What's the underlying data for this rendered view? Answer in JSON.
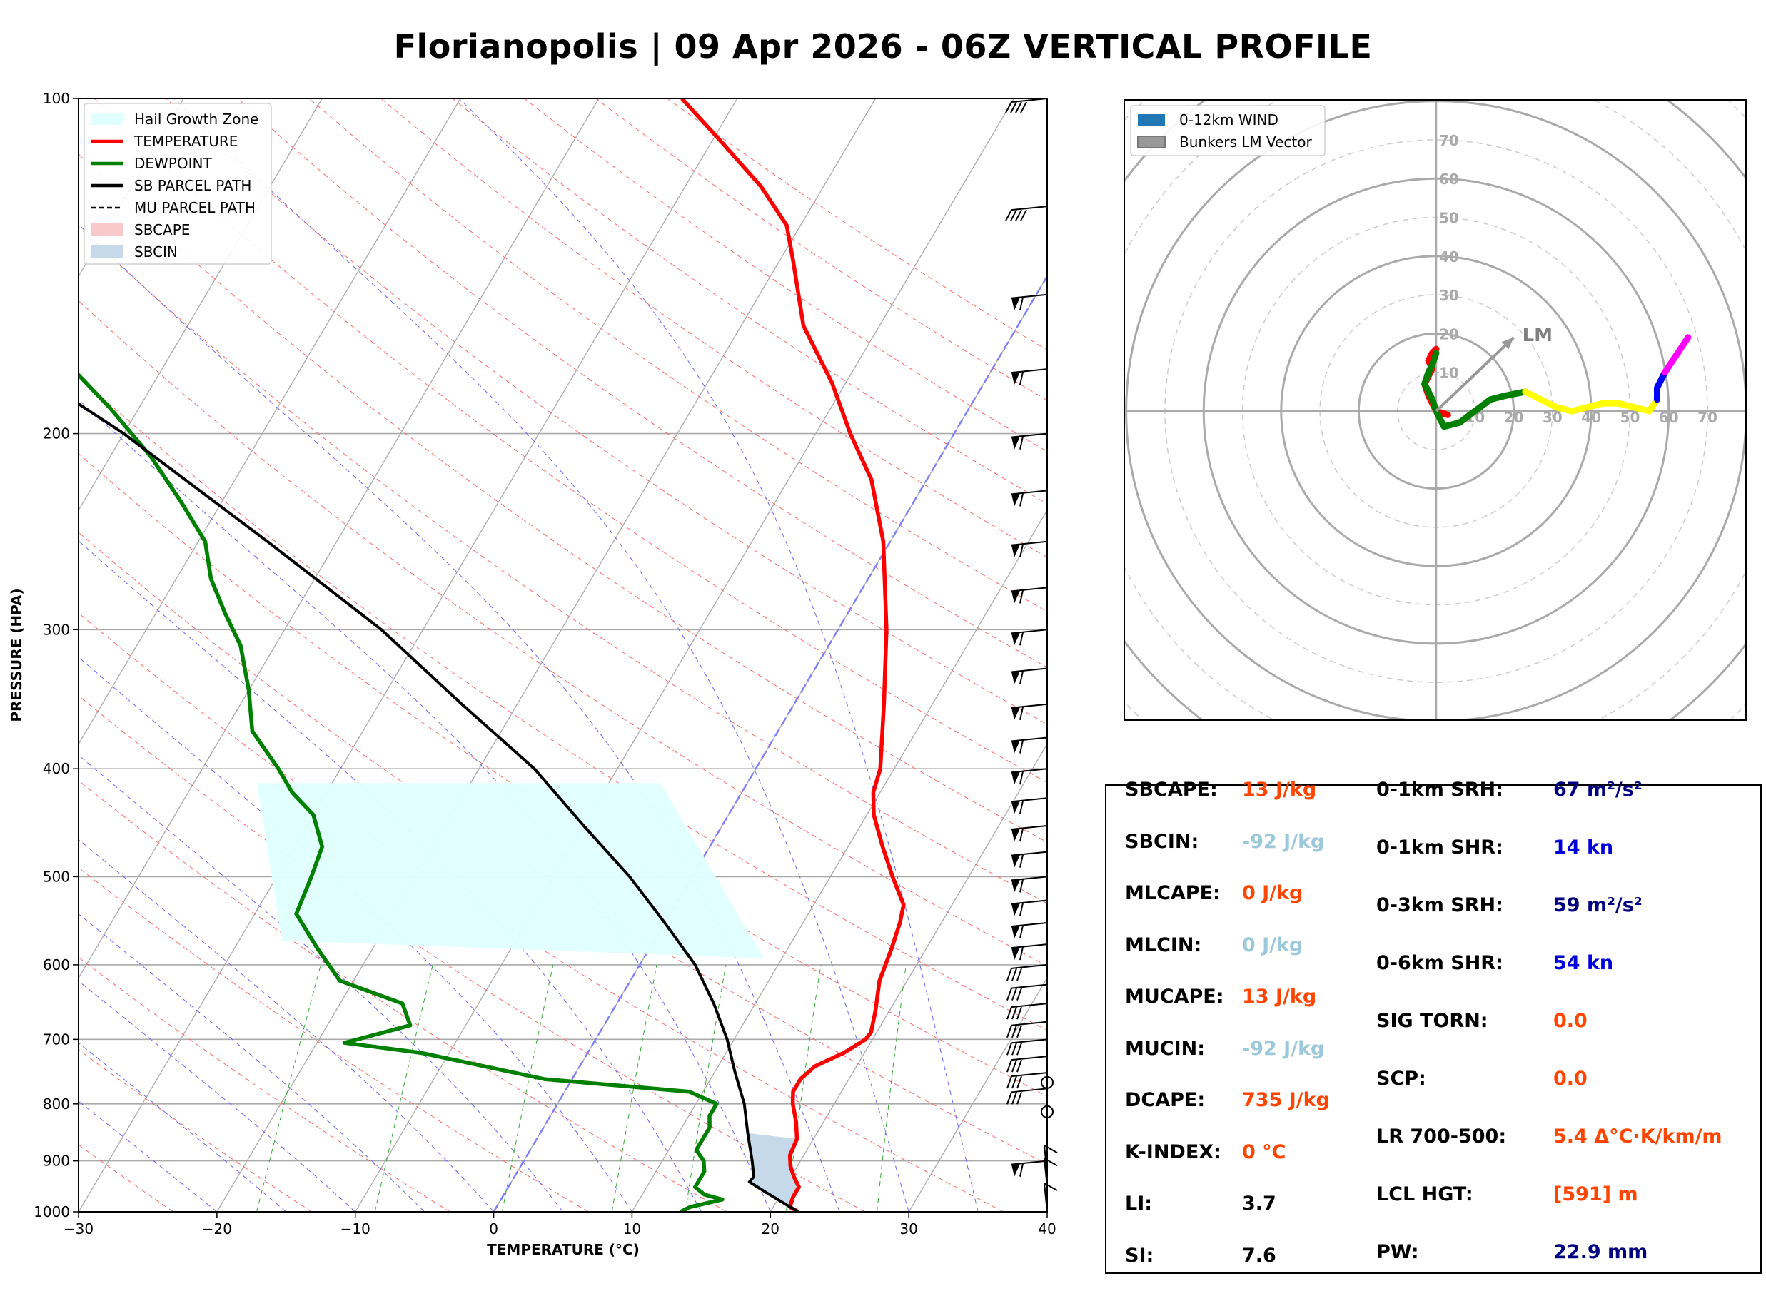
{
  "title": "Florianopolis | 09 Apr 2026 - 06Z VERTICAL PROFILE",
  "colors": {
    "temperature": "#ff0000",
    "dewpoint": "#008000",
    "parcel": "#000000",
    "hail_zone": "#e0ffff",
    "sbcin": "#c6d9ea",
    "orange_red": "#ff4500",
    "light_blue": "#9cc8dc",
    "navy": "#000080",
    "blue": "#0000dd"
  },
  "chart_data": [
    {
      "type": "line",
      "subtype": "skew-T log-P",
      "xlabel": "TEMPERATURE (°C)",
      "ylabel": "PRESSURE (HPA)",
      "xlim": [
        -30,
        40
      ],
      "ylim": [
        1000,
        100
      ],
      "x_ticks": [
        "−30",
        "−20",
        "−10",
        "0",
        "10",
        "20",
        "30",
        "40"
      ],
      "y_ticks": [
        "1000",
        "900",
        "800",
        "700",
        "600",
        "500",
        "400",
        "300",
        "200",
        "100"
      ],
      "legend": [
        {
          "label": "Hail Growth Zone",
          "style": "fill",
          "color": "#e0ffff"
        },
        {
          "label": "TEMPERATURE",
          "style": "line",
          "color": "#ff0000"
        },
        {
          "label": "DEWPOINT",
          "style": "line",
          "color": "#008000"
        },
        {
          "label": "SB PARCEL PATH",
          "style": "line",
          "color": "#000000"
        },
        {
          "label": "MU PARCEL PATH",
          "style": "dash",
          "color": "#000000"
        },
        {
          "label": "SBCAPE",
          "style": "fill",
          "color": "#f9c8c8"
        },
        {
          "label": "SBCIN",
          "style": "fill",
          "color": "#c6d9ea"
        }
      ],
      "series": [
        {
          "name": "TEMPERATURE",
          "points": [
            [
              1000,
              22.0
            ],
            [
              990,
              21.2
            ],
            [
              970,
              21.0
            ],
            [
              950,
              21.0
            ],
            [
              930,
              20.2
            ],
            [
              910,
              19.5
            ],
            [
              890,
              19.0
            ],
            [
              860,
              18.8
            ],
            [
              830,
              18.0
            ],
            [
              800,
              17.0
            ],
            [
              780,
              16.5
            ],
            [
              760,
              16.5
            ],
            [
              740,
              17.0
            ],
            [
              720,
              18.5
            ],
            [
              700,
              19.5
            ],
            [
              690,
              19.6
            ],
            [
              660,
              19.0
            ],
            [
              620,
              18.0
            ],
            [
              580,
              17.5
            ],
            [
              550,
              17.0
            ],
            [
              530,
              16.5
            ],
            [
              500,
              14.5
            ],
            [
              470,
              12.5
            ],
            [
              440,
              10.5
            ],
            [
              420,
              9.5
            ],
            [
              400,
              9.0
            ],
            [
              350,
              6.5
            ],
            [
              300,
              3.5
            ],
            [
              250,
              -0.5
            ],
            [
              220,
              -4.0
            ],
            [
              200,
              -7.5
            ],
            [
              180,
              -11.0
            ],
            [
              160,
              -15.5
            ],
            [
              140,
              -19.0
            ],
            [
              130,
              -21.0
            ],
            [
              120,
              -24.5
            ],
            [
              110,
              -29.0
            ],
            [
              100,
              -34.0
            ]
          ]
        },
        {
          "name": "DEWPOINT",
          "points": [
            [
              1000,
              13.5
            ],
            [
              990,
              14.0
            ],
            [
              975,
              16.0
            ],
            [
              965,
              14.5
            ],
            [
              950,
              13.5
            ],
            [
              935,
              13.5
            ],
            [
              920,
              13.5
            ],
            [
              900,
              13.0
            ],
            [
              880,
              12.0
            ],
            [
              860,
              12.0
            ],
            [
              840,
              12.0
            ],
            [
              820,
              11.5
            ],
            [
              800,
              11.5
            ],
            [
              780,
              9.0
            ],
            [
              760,
              -2.0
            ],
            [
              720,
              -12.0
            ],
            [
              705,
              -18.0
            ],
            [
              680,
              -14.0
            ],
            [
              650,
              -15.5
            ],
            [
              620,
              -21.0
            ],
            [
              580,
              -24.0
            ],
            [
              540,
              -27.0
            ],
            [
              500,
              -27.5
            ],
            [
              470,
              -28.0
            ],
            [
              440,
              -30.0
            ],
            [
              420,
              -32.5
            ],
            [
              400,
              -34.5
            ],
            [
              370,
              -38.0
            ],
            [
              340,
              -40.0
            ],
            [
              310,
              -42.5
            ],
            [
              290,
              -45.0
            ],
            [
              270,
              -47.5
            ],
            [
              250,
              -49.5
            ],
            [
              230,
              -53.0
            ],
            [
              210,
              -57.0
            ],
            [
              190,
              -62.0
            ],
            [
              170,
              -68.0
            ],
            [
              150,
              -72.5
            ],
            [
              135,
              -74.5
            ],
            [
              120,
              -76.5
            ],
            [
              110,
              -78.0
            ],
            [
              100,
              -79.0
            ]
          ]
        },
        {
          "name": "SB PARCEL PATH",
          "points": [
            [
              1000,
              22.0
            ],
            [
              960,
              18.8
            ],
            [
              940,
              17.2
            ],
            [
              930,
              17.3
            ],
            [
              900,
              16.5
            ],
            [
              850,
              15.0
            ],
            [
              800,
              13.5
            ],
            [
              750,
              11.5
            ],
            [
              700,
              9.5
            ],
            [
              650,
              7.0
            ],
            [
              600,
              4.0
            ],
            [
              550,
              0.0
            ],
            [
              500,
              -4.5
            ],
            [
              450,
              -10.0
            ],
            [
              400,
              -16.0
            ],
            [
              350,
              -24.0
            ],
            [
              300,
              -33.0
            ],
            [
              250,
              -45.0
            ],
            [
              200,
              -60.0
            ],
            [
              170,
              -72.0
            ],
            [
              150,
              -81.0
            ],
            [
              140,
              -86.0
            ],
            [
              130,
              -92.0
            ],
            [
              100,
              -100.0
            ]
          ]
        }
      ],
      "hail_growth_zone": {
        "top_hpa": 412,
        "bottom_hpa": 592
      },
      "wind_barbs_hpa": [
        100,
        125,
        150,
        175,
        200,
        225,
        250,
        275,
        300,
        325,
        350,
        375,
        400,
        425,
        450,
        475,
        500,
        525,
        550,
        575,
        600,
        625,
        650,
        675,
        700,
        725,
        750,
        775,
        800,
        850,
        900,
        925,
        950,
        1000
      ]
    },
    {
      "type": "line",
      "subtype": "hodograph",
      "rings": [
        10,
        20,
        30,
        40,
        50,
        60,
        70
      ],
      "ring_labels": [
        "10",
        "20",
        "30",
        "40",
        "50",
        "60",
        "70"
      ],
      "legend": [
        {
          "label": "0-12km WIND",
          "color": "#1f77b4"
        },
        {
          "label": "Bunkers LM Vector",
          "color": "#999999"
        }
      ],
      "lm_label": "LM",
      "bunkers_lm_vector": [
        20,
        19
      ],
      "segments": [
        {
          "color": "#ff0000",
          "points": [
            [
              3,
              -1
            ],
            [
              0,
              0
            ],
            [
              -1,
              2
            ],
            [
              -2,
              4
            ],
            [
              -3,
              7
            ],
            [
              -2,
              9
            ],
            [
              -1,
              11
            ],
            [
              -2,
              13
            ],
            [
              -1,
              15
            ],
            [
              0,
              16
            ]
          ]
        },
        {
          "color": "#008000",
          "points": [
            [
              0,
              15
            ],
            [
              -1,
              12
            ],
            [
              -2,
              10
            ],
            [
              -3,
              7
            ],
            [
              -2,
              5
            ],
            [
              -1,
              3
            ],
            [
              0,
              0
            ],
            [
              1,
              -2
            ],
            [
              2,
              -4
            ],
            [
              6,
              -3
            ],
            [
              10,
              0
            ],
            [
              14,
              3
            ],
            [
              18,
              4
            ],
            [
              23,
              5
            ]
          ]
        },
        {
          "color": "#ffff00",
          "points": [
            [
              23,
              5
            ],
            [
              27,
              3
            ],
            [
              31,
              1
            ],
            [
              35,
              0
            ],
            [
              39,
              1
            ],
            [
              43,
              2
            ],
            [
              47,
              2
            ],
            [
              51,
              1
            ],
            [
              55,
              0
            ],
            [
              57,
              3
            ]
          ]
        },
        {
          "color": "#0000ff",
          "points": [
            [
              57,
              3
            ],
            [
              57,
              6
            ],
            [
              58,
              8
            ],
            [
              59,
              10
            ]
          ]
        },
        {
          "color": "#ff00ff",
          "points": [
            [
              59,
              10
            ],
            [
              61,
              13
            ],
            [
              63,
              16
            ],
            [
              65,
              19
            ]
          ]
        }
      ]
    }
  ],
  "params": {
    "left": [
      {
        "label": "SBCAPE:",
        "value": "13 J/kg",
        "color": "#ff4500"
      },
      {
        "label": "SBCIN:",
        "value": "-92 J/kg",
        "color": "#9cc8dc"
      },
      {
        "label": "MLCAPE:",
        "value": "0 J/kg",
        "color": "#ff4500"
      },
      {
        "label": "MLCIN:",
        "value": "0 J/kg",
        "color": "#9cc8dc"
      },
      {
        "label": "MUCAPE:",
        "value": "13 J/kg",
        "color": "#ff4500"
      },
      {
        "label": "MUCIN:",
        "value": "-92 J/kg",
        "color": "#9cc8dc"
      },
      {
        "label": "DCAPE:",
        "value": "735 J/kg",
        "color": "#ff4500"
      },
      {
        "label": "K-INDEX:",
        "value": "0 °C",
        "color": "#ff4500"
      },
      {
        "label": "LI:",
        "value": "3.7",
        "color": "#000000"
      },
      {
        "label": "SI:",
        "value": "7.6",
        "color": "#000000"
      }
    ],
    "right": [
      {
        "label": "0-1km SRH:",
        "value": "67 m²/s²",
        "color": "#000080"
      },
      {
        "label": "0-1km SHR:",
        "value": "14 kn",
        "color": "#0000dd"
      },
      {
        "label": "0-3km SRH:",
        "value": "59 m²/s²",
        "color": "#000080"
      },
      {
        "label": "0-6km SHR:",
        "value": "54 kn",
        "color": "#0000dd"
      },
      {
        "label": "SIG TORN:",
        "value": "0.0",
        "color": "#ff4500"
      },
      {
        "label": "SCP:",
        "value": "0.0",
        "color": "#ff4500"
      },
      {
        "label": "LR 700-500:",
        "value": "5.4 Δ°C·K/km/m",
        "color": "#ff4500"
      },
      {
        "label": "LCL HGT:",
        "value": "[591] m",
        "color": "#ff4500"
      },
      {
        "label": "PW:",
        "value": "22.9 mm",
        "color": "#000080"
      }
    ]
  }
}
